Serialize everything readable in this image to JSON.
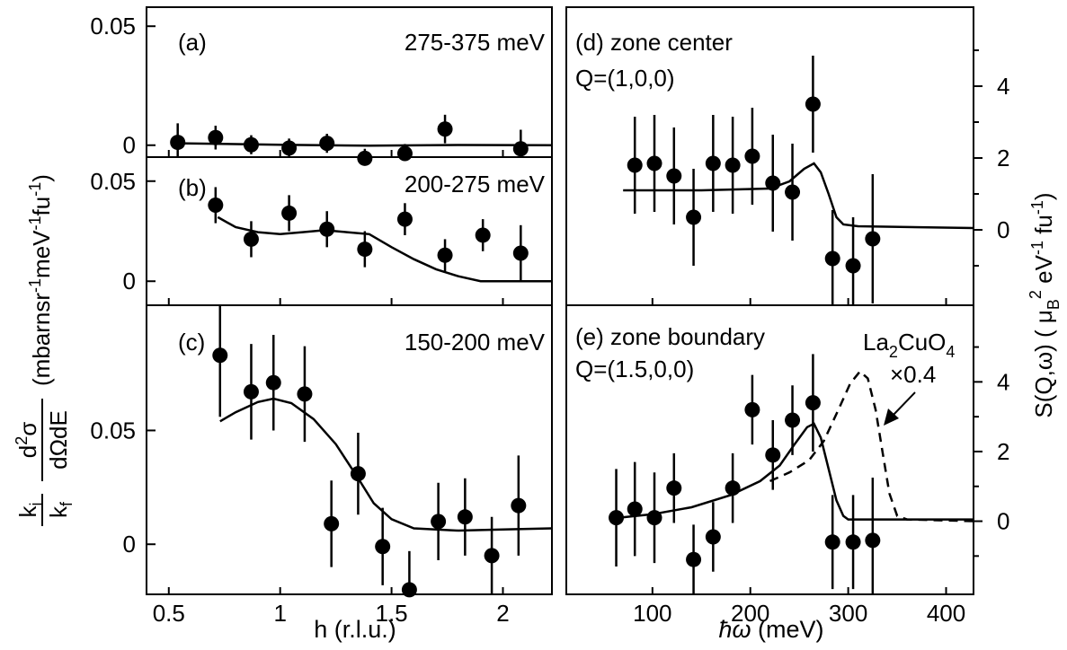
{
  "chart_data": [
    {
      "type": "scatter",
      "panel": "a",
      "label": "(a)",
      "energy_range": "275-375 meV",
      "ylim": [
        -0.005,
        0.058
      ],
      "xlim": [
        0.4,
        2.22
      ],
      "yticks": [
        {
          "v": 0,
          "label": "0"
        },
        {
          "v": 0.05,
          "label": "0.05"
        }
      ],
      "points": [
        {
          "x": 0.54,
          "y": 0.0012,
          "err": 0.008
        },
        {
          "x": 0.71,
          "y": 0.0032,
          "err": 0.005
        },
        {
          "x": 0.87,
          "y": 0.0002,
          "err": 0.004
        },
        {
          "x": 1.04,
          "y": -0.0012,
          "err": 0.004
        },
        {
          "x": 1.21,
          "y": 0.0008,
          "err": 0.004
        },
        {
          "x": 1.38,
          "y": -0.0055,
          "err": 0.004
        },
        {
          "x": 1.56,
          "y": -0.0035,
          "err": 0.004
        },
        {
          "x": 1.74,
          "y": 0.0068,
          "err": 0.006
        },
        {
          "x": 2.08,
          "y": -0.0015,
          "err": 0.008
        }
      ],
      "fit": [
        [
          0.55,
          0.0008
        ],
        [
          1.0,
          0.0002
        ],
        [
          1.4,
          -0.0002
        ],
        [
          1.8,
          0.0001
        ],
        [
          2.22,
          0.0
        ]
      ]
    },
    {
      "type": "scatter",
      "panel": "b",
      "label": "(b)",
      "energy_range": "200-275 meV",
      "ylim": [
        -0.012,
        0.062
      ],
      "xlim": [
        0.4,
        2.22
      ],
      "yticks": [
        {
          "v": 0,
          "label": "0"
        },
        {
          "v": 0.05,
          "label": "0.05"
        }
      ],
      "points": [
        {
          "x": 0.71,
          "y": 0.038,
          "err": 0.009
        },
        {
          "x": 0.87,
          "y": 0.021,
          "err": 0.009
        },
        {
          "x": 1.04,
          "y": 0.034,
          "err": 0.009
        },
        {
          "x": 1.21,
          "y": 0.026,
          "err": 0.009
        },
        {
          "x": 1.38,
          "y": 0.016,
          "err": 0.009
        },
        {
          "x": 1.56,
          "y": 0.031,
          "err": 0.008
        },
        {
          "x": 1.74,
          "y": 0.013,
          "err": 0.008
        },
        {
          "x": 1.91,
          "y": 0.023,
          "err": 0.008
        },
        {
          "x": 2.08,
          "y": 0.014,
          "err": 0.014
        }
      ],
      "fit": [
        [
          0.72,
          0.032
        ],
        [
          0.8,
          0.027
        ],
        [
          0.9,
          0.0245
        ],
        [
          1.0,
          0.0235
        ],
        [
          1.1,
          0.0245
        ],
        [
          1.2,
          0.0255
        ],
        [
          1.3,
          0.0245
        ],
        [
          1.4,
          0.0235
        ],
        [
          1.5,
          0.017
        ],
        [
          1.6,
          0.011
        ],
        [
          1.7,
          0.006
        ],
        [
          1.8,
          0.0025
        ],
        [
          1.9,
          0.0
        ],
        [
          2.22,
          0.0
        ]
      ]
    },
    {
      "type": "scatter",
      "panel": "c",
      "label": "(c)",
      "energy_range": "150-200 meV",
      "xlabel": "h (r.l.u.)",
      "ylim": [
        -0.022,
        0.105
      ],
      "xlim": [
        0.4,
        2.22
      ],
      "xticks": [
        {
          "v": 0.5,
          "label": "0.5"
        },
        {
          "v": 1,
          "label": "1"
        },
        {
          "v": 1.5,
          "label": "1.5"
        },
        {
          "v": 2,
          "label": "2"
        }
      ],
      "yticks": [
        {
          "v": 0,
          "label": "0"
        },
        {
          "v": 0.05,
          "label": "0.05"
        }
      ],
      "points": [
        {
          "x": 0.73,
          "y": 0.083,
          "err": 0.027
        },
        {
          "x": 0.87,
          "y": 0.067,
          "err": 0.021
        },
        {
          "x": 0.97,
          "y": 0.071,
          "err": 0.021
        },
        {
          "x": 1.11,
          "y": 0.066,
          "err": 0.021
        },
        {
          "x": 1.23,
          "y": 0.009,
          "err": 0.019
        },
        {
          "x": 1.35,
          "y": 0.031,
          "err": 0.018
        },
        {
          "x": 1.46,
          "y": -0.001,
          "err": 0.017
        },
        {
          "x": 1.58,
          "y": -0.02,
          "err": 0.017
        },
        {
          "x": 1.71,
          "y": 0.01,
          "err": 0.017
        },
        {
          "x": 1.83,
          "y": 0.012,
          "err": 0.017
        },
        {
          "x": 1.95,
          "y": -0.005,
          "err": 0.017
        },
        {
          "x": 2.07,
          "y": 0.017,
          "err": 0.022
        }
      ],
      "fit": [
        [
          0.73,
          0.054
        ],
        [
          0.8,
          0.058
        ],
        [
          0.9,
          0.0625
        ],
        [
          0.97,
          0.064
        ],
        [
          1.05,
          0.062
        ],
        [
          1.15,
          0.055
        ],
        [
          1.25,
          0.044
        ],
        [
          1.35,
          0.029
        ],
        [
          1.42,
          0.018
        ],
        [
          1.5,
          0.011
        ],
        [
          1.6,
          0.007
        ],
        [
          1.8,
          0.006
        ],
        [
          2.0,
          0.0065
        ],
        [
          2.22,
          0.007
        ]
      ]
    },
    {
      "type": "scatter",
      "panel": "d",
      "label": "(d)",
      "title": "zone center",
      "q_label": "Q=(1,0,0)",
      "ylim": [
        -2.1,
        6.2
      ],
      "xlim": [
        12,
        428
      ],
      "yticks": [
        {
          "v": 0,
          "label": "0"
        },
        {
          "v": 2,
          "label": "2"
        },
        {
          "v": 4,
          "label": "4"
        }
      ],
      "points": [
        {
          "x": 82,
          "y": 1.8,
          "err": 1.35
        },
        {
          "x": 102,
          "y": 1.85,
          "err": 1.35
        },
        {
          "x": 122,
          "y": 1.5,
          "err": 1.35
        },
        {
          "x": 142,
          "y": 0.35,
          "err": 1.35
        },
        {
          "x": 162,
          "y": 1.85,
          "err": 1.35
        },
        {
          "x": 182,
          "y": 1.8,
          "err": 1.35
        },
        {
          "x": 202,
          "y": 2.05,
          "err": 1.35
        },
        {
          "x": 223,
          "y": 1.3,
          "err": 1.35
        },
        {
          "x": 243,
          "y": 1.05,
          "err": 1.35
        },
        {
          "x": 264,
          "y": 3.5,
          "err": 1.35
        },
        {
          "x": 284,
          "y": -0.8,
          "err": 1.35
        },
        {
          "x": 305,
          "y": -1.0,
          "err": 1.35
        },
        {
          "x": 325,
          "y": -0.25,
          "err": 1.8
        }
      ],
      "fit": [
        [
          70,
          1.1
        ],
        [
          150,
          1.1
        ],
        [
          220,
          1.15
        ],
        [
          240,
          1.35
        ],
        [
          255,
          1.7
        ],
        [
          265,
          1.85
        ],
        [
          272,
          1.6
        ],
        [
          280,
          1.0
        ],
        [
          288,
          0.35
        ],
        [
          295,
          0.15
        ],
        [
          310,
          0.1
        ],
        [
          428,
          0.05
        ]
      ]
    },
    {
      "type": "scatter",
      "panel": "e",
      "label": "(e)",
      "title": "zone boundary",
      "q_label": "Q=(1.5,0,0)",
      "xlabel": "ħω (meV)",
      "ylabel": "S(Q,ω) ( μB² eV⁻¹ fu⁻¹)",
      "ylim": [
        -2.1,
        6.2
      ],
      "xlim": [
        12,
        428
      ],
      "xticks": [
        {
          "v": 100,
          "label": "100"
        },
        {
          "v": 200,
          "label": "200"
        },
        {
          "v": 300,
          "label": "300"
        },
        {
          "v": 400,
          "label": "400"
        }
      ],
      "yticks": [
        {
          "v": 0,
          "label": "0"
        },
        {
          "v": 2,
          "label": "2"
        },
        {
          "v": 4,
          "label": "4"
        }
      ],
      "points": [
        {
          "x": 63,
          "y": 0.1,
          "err": 1.4
        },
        {
          "x": 82,
          "y": 0.35,
          "err": 1.35
        },
        {
          "x": 102,
          "y": 0.1,
          "err": 1.3
        },
        {
          "x": 122,
          "y": 0.95,
          "err": 1.0
        },
        {
          "x": 142,
          "y": -1.1,
          "err": 1.0
        },
        {
          "x": 162,
          "y": -0.45,
          "err": 1.0
        },
        {
          "x": 182,
          "y": 0.95,
          "err": 1.0
        },
        {
          "x": 202,
          "y": 3.2,
          "err": 1.0
        },
        {
          "x": 223,
          "y": 1.9,
          "err": 1.0
        },
        {
          "x": 243,
          "y": 2.9,
          "err": 1.0
        },
        {
          "x": 264,
          "y": 3.4,
          "err": 1.4
        },
        {
          "x": 284,
          "y": -0.6,
          "err": 1.35
        },
        {
          "x": 305,
          "y": -0.6,
          "err": 1.35
        },
        {
          "x": 325,
          "y": -0.55,
          "err": 1.8
        }
      ],
      "fit": [
        [
          65,
          0.1
        ],
        [
          100,
          0.2
        ],
        [
          140,
          0.4
        ],
        [
          180,
          0.75
        ],
        [
          210,
          1.15
        ],
        [
          230,
          1.6
        ],
        [
          245,
          2.2
        ],
        [
          258,
          2.7
        ],
        [
          265,
          2.8
        ],
        [
          272,
          2.4
        ],
        [
          280,
          1.5
        ],
        [
          288,
          0.6
        ],
        [
          295,
          0.15
        ],
        [
          300,
          0.05
        ],
        [
          428,
          0.05
        ]
      ],
      "comparison": {
        "label": "La2CuO4",
        "scale_label": "×0.4",
        "curve": [
          [
            220,
            1.15
          ],
          [
            240,
            1.4
          ],
          [
            260,
            1.75
          ],
          [
            275,
            2.3
          ],
          [
            290,
            3.2
          ],
          [
            302,
            3.95
          ],
          [
            312,
            4.3
          ],
          [
            320,
            4.1
          ],
          [
            328,
            3.2
          ],
          [
            335,
            2.0
          ],
          [
            342,
            0.8
          ],
          [
            350,
            0.15
          ],
          [
            360,
            0.05
          ],
          [
            428,
            0.0
          ]
        ]
      }
    }
  ],
  "left_axis_label": {
    "prefactor_num": "k",
    "prefactor_num_sub": "i",
    "prefactor_den": "k",
    "prefactor_den_sub": "f",
    "deriv_num": "d²σ",
    "deriv_den": "dΩdE",
    "units": "(mbarnsr⁻¹meV⁻¹fu⁻¹)"
  }
}
